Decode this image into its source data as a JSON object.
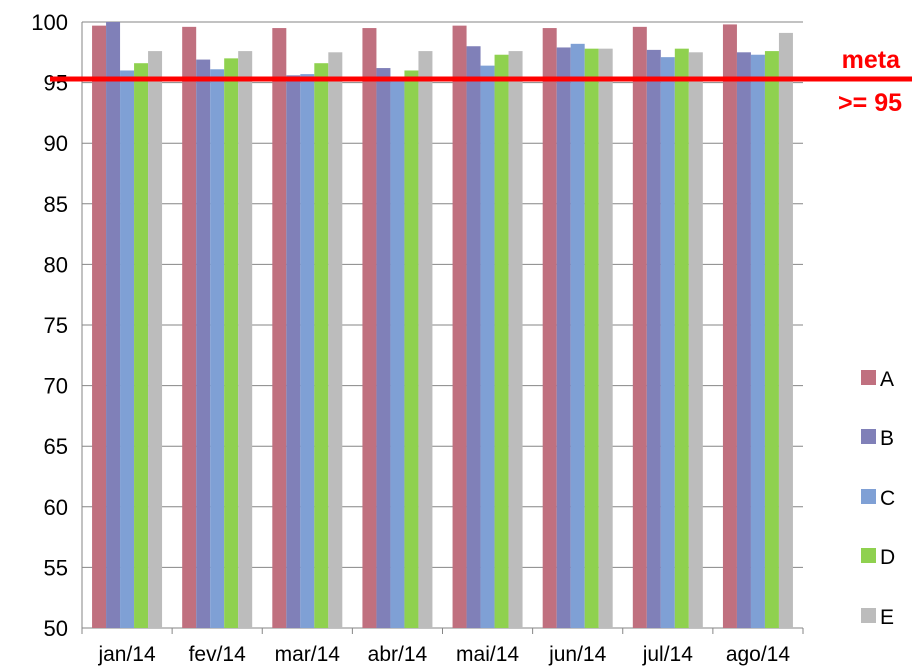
{
  "chart_data": {
    "type": "bar",
    "title": "",
    "xlabel": "",
    "ylabel": "",
    "ylim": [
      50,
      100
    ],
    "yticks": [
      50,
      55,
      60,
      65,
      70,
      75,
      80,
      85,
      90,
      95,
      100
    ],
    "grid": "horizontal",
    "legend_position": "right",
    "categories": [
      "jan/14",
      "fev/14",
      "mar/14",
      "abr/14",
      "mai/14",
      "jun/14",
      "jul/14",
      "ago/14"
    ],
    "series": [
      {
        "name": "A",
        "color": "#c0707f",
        "values": [
          99.7,
          99.6,
          99.5,
          99.5,
          99.7,
          99.5,
          99.6,
          99.8
        ]
      },
      {
        "name": "B",
        "color": "#8080b8",
        "values": [
          100.0,
          96.9,
          95.6,
          96.2,
          98.0,
          97.9,
          97.7,
          97.5
        ]
      },
      {
        "name": "C",
        "color": "#7fa0d5",
        "values": [
          96.0,
          96.1,
          95.7,
          95.5,
          96.4,
          98.2,
          97.1,
          97.3
        ]
      },
      {
        "name": "D",
        "color": "#8fd14f",
        "values": [
          96.6,
          97.0,
          96.6,
          96.0,
          97.3,
          97.8,
          97.8,
          97.6
        ]
      },
      {
        "name": "E",
        "color": "#bcbcbc",
        "values": [
          97.6,
          97.6,
          97.5,
          97.6,
          97.6,
          97.8,
          97.5,
          99.1
        ]
      }
    ],
    "reference_line": {
      "value": 95.3,
      "color": "#ff0000",
      "label_line1": "meta",
      "label_line2": ">= 95"
    }
  }
}
